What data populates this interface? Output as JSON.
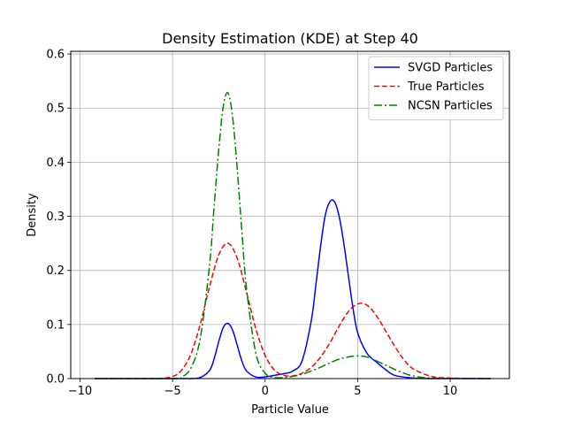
{
  "chart_data": {
    "type": "line",
    "title": "Density Estimation (KDE) at Step 40",
    "xlabel": "Particle Value",
    "ylabel": "Density",
    "xlim": [
      -10.5,
      13.2
    ],
    "ylim": [
      0,
      0.605
    ],
    "xticks": [
      -10,
      -5,
      0,
      5,
      10
    ],
    "xtick_labels": [
      "−10",
      "−5",
      "0",
      "5",
      "10"
    ],
    "yticks": [
      0.0,
      0.1,
      0.2,
      0.3,
      0.4,
      0.5,
      0.6
    ],
    "ytick_labels": [
      "0.0",
      "0.1",
      "0.2",
      "0.3",
      "0.4",
      "0.5",
      "0.6"
    ],
    "grid": true,
    "legend_position": "top-right",
    "series": [
      {
        "name": "SVGD Particles",
        "color": "#0000ff",
        "style": "solid",
        "x": [
          -9.2,
          -5.0,
          -4.0,
          -3.5,
          -3.0,
          -2.75,
          -2.5,
          -2.25,
          -2.0,
          -1.75,
          -1.5,
          -1.25,
          -1.0,
          -0.5,
          0.0,
          0.5,
          1.0,
          1.5,
          2.0,
          2.5,
          2.75,
          3.0,
          3.25,
          3.5,
          3.75,
          4.0,
          4.25,
          4.5,
          4.75,
          5.0,
          5.5,
          6.0,
          6.5,
          7.0,
          8.0,
          9.0,
          12.2
        ],
        "values": [
          0.0,
          0.0,
          0.0,
          0.002,
          0.015,
          0.037,
          0.069,
          0.095,
          0.102,
          0.089,
          0.061,
          0.032,
          0.014,
          0.003,
          0.003,
          0.006,
          0.009,
          0.014,
          0.033,
          0.108,
          0.175,
          0.245,
          0.302,
          0.327,
          0.327,
          0.3,
          0.251,
          0.19,
          0.13,
          0.085,
          0.047,
          0.031,
          0.017,
          0.006,
          0.001,
          0.0,
          0.0
        ]
      },
      {
        "name": "True Particles",
        "color": "#ff0000",
        "style": "dashed",
        "x": [
          -9.2,
          -6.0,
          -5.0,
          -4.5,
          -4.0,
          -3.5,
          -3.0,
          -2.5,
          -2.0,
          -1.5,
          -1.0,
          -0.5,
          0.0,
          0.5,
          1.0,
          1.5,
          2.0,
          2.5,
          3.0,
          3.5,
          4.0,
          4.5,
          5.0,
          5.5,
          6.0,
          6.5,
          7.0,
          7.5,
          8.0,
          9.0,
          10.0,
          12.2
        ],
        "values": [
          0.0,
          0.0,
          0.004,
          0.016,
          0.046,
          0.101,
          0.17,
          0.229,
          0.25,
          0.222,
          0.159,
          0.092,
          0.043,
          0.016,
          0.006,
          0.005,
          0.01,
          0.021,
          0.04,
          0.066,
          0.097,
          0.124,
          0.138,
          0.136,
          0.117,
          0.089,
          0.06,
          0.035,
          0.018,
          0.004,
          0.001,
          0.0
        ]
      },
      {
        "name": "NCSN Particles",
        "color": "#008000",
        "style": "dashdot",
        "x": [
          -9.2,
          -5.0,
          -4.5,
          -4.0,
          -3.5,
          -3.0,
          -2.75,
          -2.5,
          -2.25,
          -2.0,
          -1.75,
          -1.5,
          -1.25,
          -1.0,
          -0.5,
          0.0,
          0.5,
          1.0,
          1.5,
          2.0,
          2.5,
          3.0,
          3.5,
          4.0,
          4.5,
          5.0,
          5.5,
          6.0,
          6.5,
          7.0,
          7.5,
          8.0,
          9.0,
          12.2
        ],
        "values": [
          0.0,
          0.0,
          0.003,
          0.02,
          0.075,
          0.21,
          0.32,
          0.425,
          0.505,
          0.528,
          0.482,
          0.385,
          0.27,
          0.165,
          0.047,
          0.01,
          0.002,
          0.002,
          0.004,
          0.008,
          0.014,
          0.021,
          0.029,
          0.036,
          0.04,
          0.042,
          0.04,
          0.033,
          0.025,
          0.017,
          0.01,
          0.005,
          0.001,
          0.0
        ]
      }
    ]
  }
}
